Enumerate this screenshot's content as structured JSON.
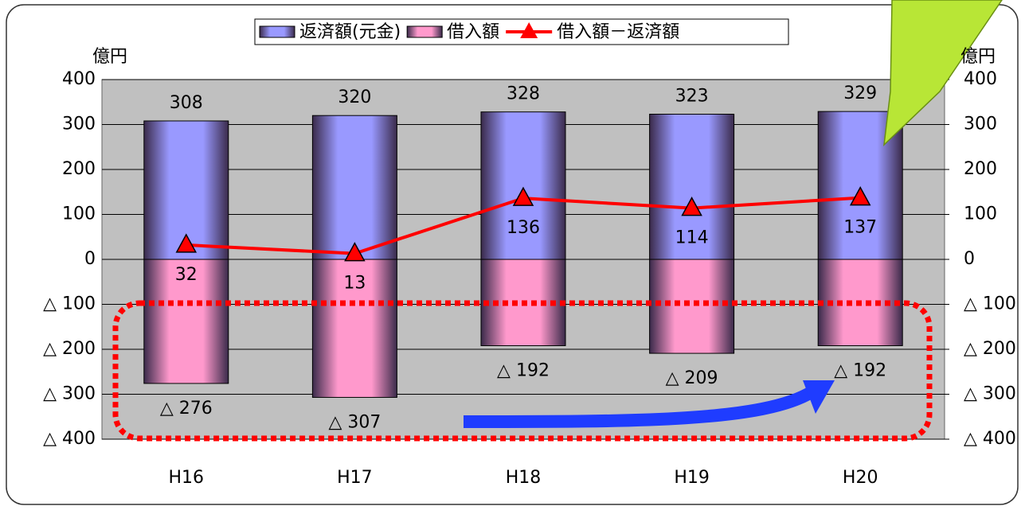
{
  "chart_data": {
    "type": "bar",
    "categories": [
      "H16",
      "H17",
      "H18",
      "H19",
      "H20"
    ],
    "ylabel": "億円",
    "y2label": "億円",
    "ylim": [
      -400,
      400
    ],
    "yticks": [
      {
        "value": -400,
        "label": "△ 400"
      },
      {
        "value": -300,
        "label": "△ 300"
      },
      {
        "value": -200,
        "label": "△ 200"
      },
      {
        "value": -100,
        "label": "△ 100"
      },
      0,
      100,
      200,
      300,
      400
    ],
    "y2lim": [
      -400,
      400
    ],
    "y2ticks": [
      {
        "value": -400,
        "label": "△ 400"
      },
      {
        "value": -300,
        "label": "△ 300"
      },
      {
        "value": -200,
        "label": "△ 200"
      },
      {
        "value": -100,
        "label": "△ 100"
      },
      0,
      100,
      200,
      300,
      400
    ],
    "grid": true,
    "legend": "top",
    "series": [
      {
        "name": "返済額(元金)",
        "type": "bar",
        "color": "#9999ff",
        "values": [
          308,
          320,
          328,
          323,
          329
        ]
      },
      {
        "name": "借入額",
        "type": "bar",
        "color": "#ff99cc",
        "values": [
          -276,
          -307,
          -192,
          -209,
          -192
        ],
        "value_labels": [
          "△ 276",
          "△ 307",
          "△ 192",
          "△ 209",
          "△ 192"
        ]
      },
      {
        "name": "借入額－返済額",
        "type": "line",
        "color": "#ff0000",
        "values": [
          32,
          13,
          136,
          114,
          137
        ]
      }
    ]
  }
}
